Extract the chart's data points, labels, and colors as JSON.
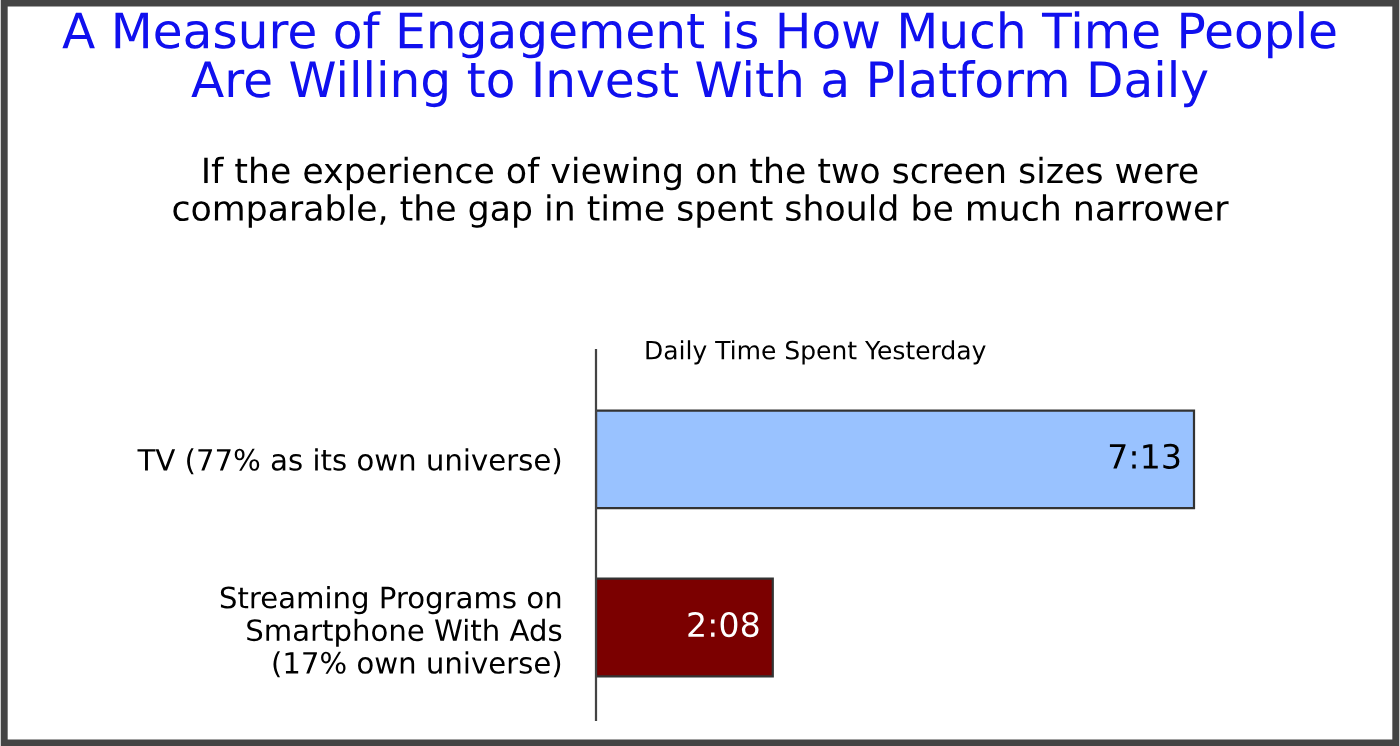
{
  "chart_data": {
    "type": "bar",
    "orientation": "horizontal",
    "title": "A Measure of Engagement is How Much Time People\nAre Willing to Invest With a Platform Daily",
    "subtitle": "If the experience of viewing on the two screen sizes were\ncomparable, the gap in time spent should be much narrower",
    "xlabel": "Daily Time Spent Yesterday",
    "categories": [
      "TV (77% as its own universe)",
      "Streaming Programs on\nSmartphone With Ads\n(17% own universe)"
    ],
    "values": [
      7.2167,
      2.1333
    ],
    "colors": [
      "#99c2ff",
      "#7b0000"
    ],
    "value_labels": [
      "7:13",
      "2:08"
    ],
    "grid": false,
    "legend": false
  }
}
